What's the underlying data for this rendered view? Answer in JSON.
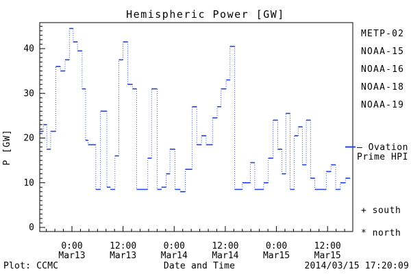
{
  "title": "Hemispheric Power [GW]",
  "colors": {
    "curve_blue": "#2244dd",
    "metp_black": "#000000",
    "noaa15_blue": "#2244dd",
    "noaa16_cyan": "#33c6f2",
    "noaa18_green": "#77e69a",
    "noaa19_orange": "#f2a833"
  },
  "legend": {
    "items": [
      {
        "label": "METP-02",
        "color": "#000000"
      },
      {
        "label": "NOAA-15",
        "color": "#2244dd"
      },
      {
        "label": "NOAA-16",
        "color": "#33c6f2"
      },
      {
        "label": "NOAA-18",
        "color": "#77e69a"
      },
      {
        "label": "NOAA-19",
        "color": "#f2a833"
      }
    ]
  },
  "annotations": {
    "ovation_line1": "– Ovation",
    "ovation_line2": "Prime HPI",
    "south": "+ south",
    "north": "* north"
  },
  "footer": {
    "left": "Plot: CCMC",
    "center": "Date and Time",
    "right": "2014/03/15 17:20:09"
  },
  "chart_data": {
    "type": "line",
    "style": "step-post; solid horizontal segments, dotted vertical connectors",
    "title": "Hemispheric Power [GW]",
    "xlabel": "Date and Time",
    "ylabel": "P [GW]",
    "ylim": [
      0,
      45
    ],
    "grid": false,
    "legend_position": "right-outside",
    "x_axis": {
      "unit": "hours relative to 2014 Mar13 00:00",
      "range": [
        -7.6,
        65.9
      ],
      "major_ticks_hours": [
        0,
        12,
        24,
        36,
        48,
        60
      ],
      "minor_tick_step_hours": 2,
      "tick_labels": [
        {
          "time": "0:00",
          "date": "Mar13"
        },
        {
          "time": "12:00",
          "date": "Mar13"
        },
        {
          "time": "0:00",
          "date": "Mar14"
        },
        {
          "time": "12:00",
          "date": "Mar14"
        },
        {
          "time": "0:00",
          "date": "Mar15"
        },
        {
          "time": "12:00",
          "date": "Mar15"
        }
      ]
    },
    "y_axis": {
      "major_ticks": [
        0,
        10,
        20,
        30,
        40
      ],
      "minor_tick_step": 1
    },
    "series": [
      {
        "name": "Ovation Prime HPI",
        "color": "#2244dd",
        "points_hour_gw": [
          [
            -7.6,
            21.5
          ],
          [
            -6.7,
            23.0
          ],
          [
            -5.9,
            17.5
          ],
          [
            -5.0,
            21.5
          ],
          [
            -3.8,
            36.0
          ],
          [
            -2.7,
            35.0
          ],
          [
            -1.6,
            37.5
          ],
          [
            -0.6,
            44.5
          ],
          [
            0.3,
            41.5
          ],
          [
            1.3,
            39.5
          ],
          [
            2.4,
            31.0
          ],
          [
            3.2,
            19.5
          ],
          [
            3.8,
            18.5
          ],
          [
            5.6,
            8.5
          ],
          [
            6.7,
            26.0
          ],
          [
            8.2,
            9.0
          ],
          [
            9.0,
            8.5
          ],
          [
            10.1,
            16.0
          ],
          [
            11.0,
            37.5
          ],
          [
            12.0,
            41.5
          ],
          [
            13.1,
            32.0
          ],
          [
            14.2,
            31.0
          ],
          [
            15.2,
            8.5
          ],
          [
            17.8,
            15.5
          ],
          [
            18.7,
            31.0
          ],
          [
            20.0,
            8.5
          ],
          [
            21.0,
            9.0
          ],
          [
            22.1,
            12.0
          ],
          [
            23.0,
            17.5
          ],
          [
            24.2,
            8.5
          ],
          [
            25.4,
            8.0
          ],
          [
            26.6,
            13.0
          ],
          [
            28.2,
            27.0
          ],
          [
            29.3,
            18.5
          ],
          [
            30.4,
            20.5
          ],
          [
            31.5,
            18.5
          ],
          [
            33.0,
            24.5
          ],
          [
            34.1,
            27.0
          ],
          [
            35.0,
            31.0
          ],
          [
            36.2,
            33.0
          ],
          [
            37.1,
            40.5
          ],
          [
            38.2,
            8.5
          ],
          [
            40.0,
            10.0
          ],
          [
            41.9,
            14.5
          ],
          [
            42.9,
            8.5
          ],
          [
            45.0,
            10.0
          ],
          [
            46.1,
            15.5
          ],
          [
            47.2,
            24.0
          ],
          [
            48.3,
            17.5
          ],
          [
            49.3,
            12.0
          ],
          [
            50.2,
            25.5
          ],
          [
            51.2,
            8.5
          ],
          [
            52.2,
            20.5
          ],
          [
            53.1,
            22.5
          ],
          [
            54.1,
            14.0
          ],
          [
            55.0,
            24.0
          ],
          [
            56.0,
            11.0
          ],
          [
            57.0,
            8.5
          ],
          [
            59.7,
            12.5
          ],
          [
            60.8,
            14.0
          ],
          [
            61.9,
            8.5
          ],
          [
            63.0,
            10.0
          ],
          [
            64.2,
            11.0
          ],
          [
            65.3,
            11.0
          ]
        ]
      }
    ],
    "ovation_marker_gw": 18
  }
}
